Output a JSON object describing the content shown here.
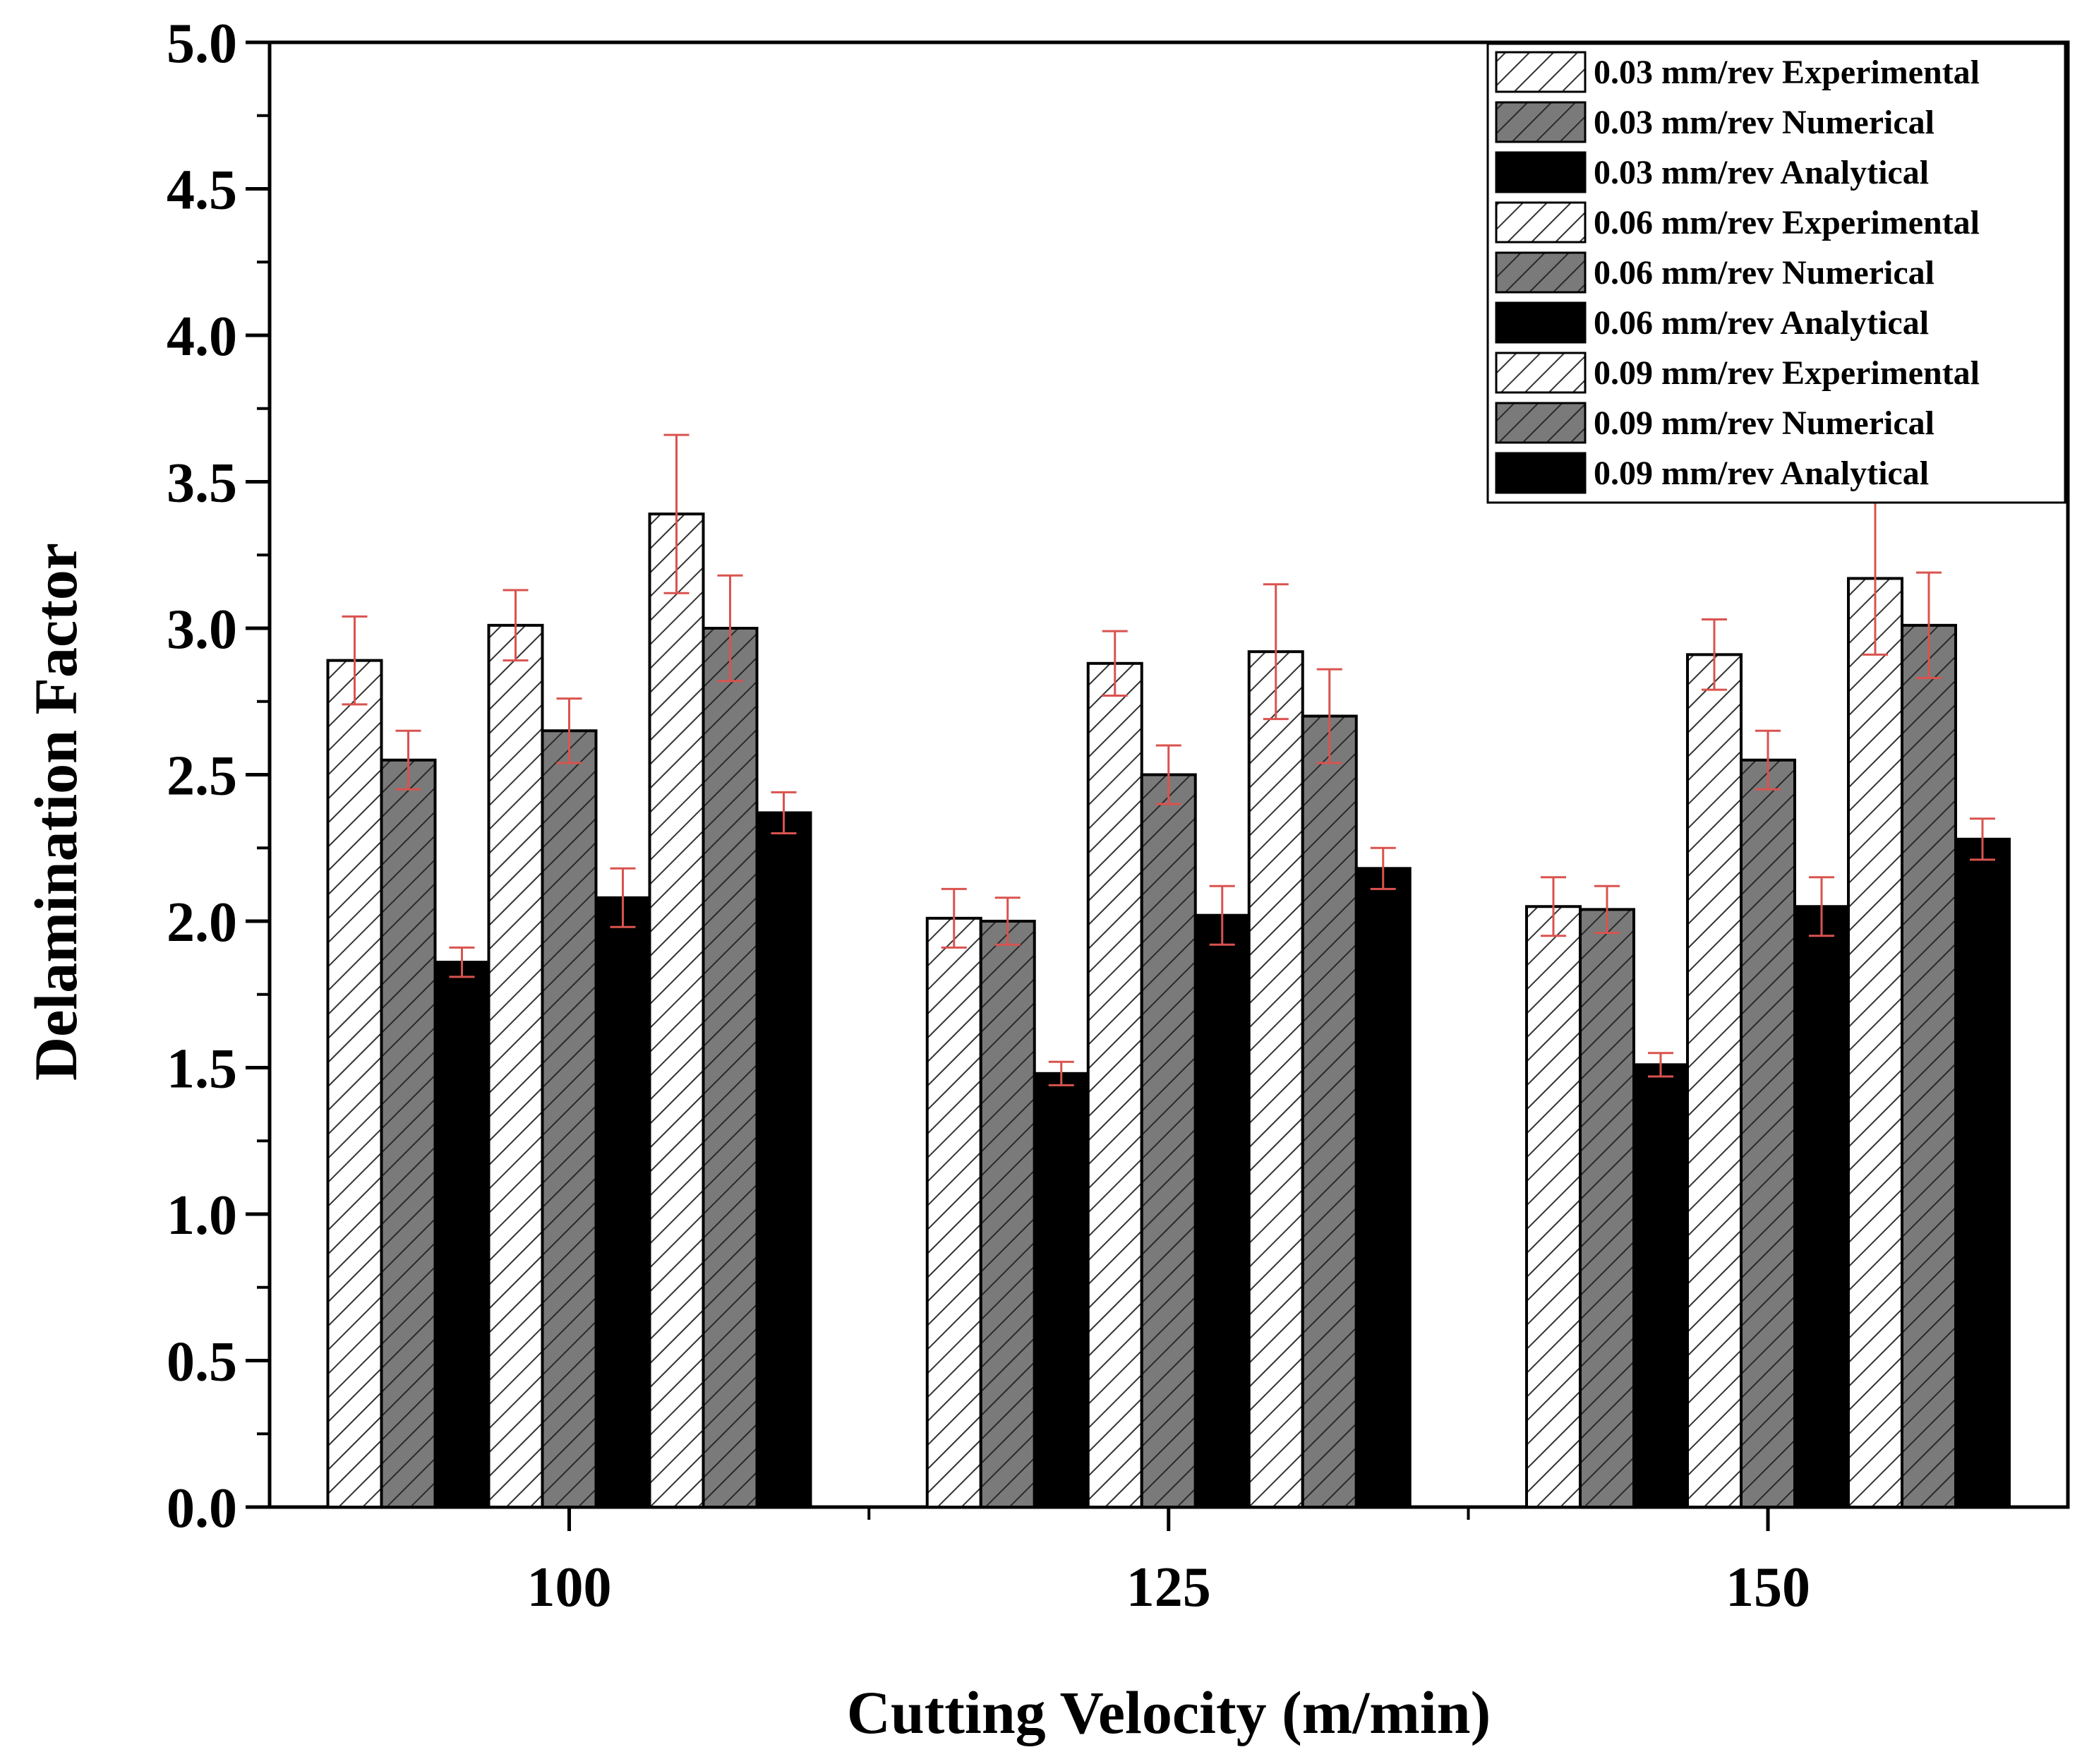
{
  "chart_data": {
    "type": "bar",
    "title": "",
    "xlabel": "Cutting Velocity (m/min)",
    "ylabel": "Delamination Factor",
    "ylim": [
      0,
      5
    ],
    "yticks": [
      "0.0",
      "0.5",
      "1.0",
      "1.5",
      "2.0",
      "2.5",
      "3.0",
      "3.5",
      "4.0",
      "4.5",
      "5.0"
    ],
    "categories": [
      "100",
      "125",
      "150"
    ],
    "legend_position": "top-right",
    "error_bar_color": "#d9534f",
    "series": [
      {
        "name": "0.03 mm/rev Experimental",
        "style": "hatch-light",
        "values": [
          2.89,
          2.01,
          2.05
        ],
        "errors": [
          0.15,
          0.1,
          0.1
        ]
      },
      {
        "name": "0.03 mm/rev Numerical",
        "style": "hatch-dark",
        "values": [
          2.55,
          2.0,
          2.04
        ],
        "errors": [
          0.1,
          0.08,
          0.08
        ]
      },
      {
        "name": "0.03 mm/rev Analytical",
        "style": "solid-black",
        "values": [
          1.86,
          1.48,
          1.51
        ],
        "errors": [
          0.05,
          0.04,
          0.04
        ]
      },
      {
        "name": "0.06 mm/rev Experimental",
        "style": "hatch-light",
        "values": [
          3.01,
          2.88,
          2.91
        ],
        "errors": [
          0.12,
          0.11,
          0.12
        ]
      },
      {
        "name": "0.06 mm/rev Numerical",
        "style": "hatch-dark",
        "values": [
          2.65,
          2.5,
          2.55
        ],
        "errors": [
          0.11,
          0.1,
          0.1
        ]
      },
      {
        "name": "0.06 mm/rev Analytical",
        "style": "solid-black",
        "values": [
          2.08,
          2.02,
          2.05
        ],
        "errors": [
          0.1,
          0.1,
          0.1
        ]
      },
      {
        "name": "0.09 mm/rev Experimental",
        "style": "hatch-light",
        "values": [
          3.39,
          2.92,
          3.17
        ],
        "errors": [
          0.27,
          0.23,
          0.26
        ]
      },
      {
        "name": "0.09 mm/rev Numerical",
        "style": "hatch-dark",
        "values": [
          3.0,
          2.7,
          3.01
        ],
        "errors": [
          0.18,
          0.16,
          0.18
        ]
      },
      {
        "name": "0.09 mm/rev Analytical",
        "style": "solid-black",
        "values": [
          2.37,
          2.18,
          2.28
        ],
        "errors": [
          0.07,
          0.07,
          0.07
        ]
      }
    ]
  }
}
